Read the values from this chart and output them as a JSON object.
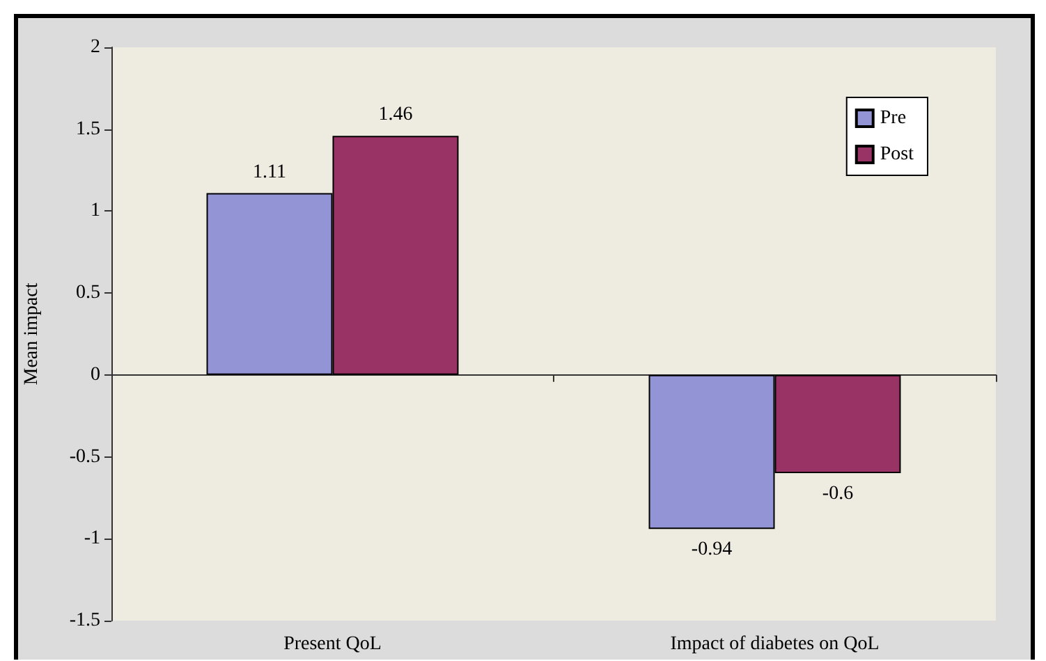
{
  "chart_data": {
    "type": "bar",
    "ylabel": "Mean impact",
    "categories": [
      "Present QoL",
      "Impact of diabetes on QoL"
    ],
    "series": [
      {
        "name": "Pre",
        "color": "#9394d5",
        "values": [
          1.11,
          -0.94
        ]
      },
      {
        "name": "Post",
        "color": "#993366",
        "values": [
          1.46,
          -0.6
        ]
      }
    ],
    "ylim": [
      -1.5,
      2
    ],
    "yticks": [
      -1.5,
      -1,
      -0.5,
      0,
      0.5,
      1,
      1.5,
      2
    ],
    "data_labels": true,
    "legend": "top right"
  }
}
